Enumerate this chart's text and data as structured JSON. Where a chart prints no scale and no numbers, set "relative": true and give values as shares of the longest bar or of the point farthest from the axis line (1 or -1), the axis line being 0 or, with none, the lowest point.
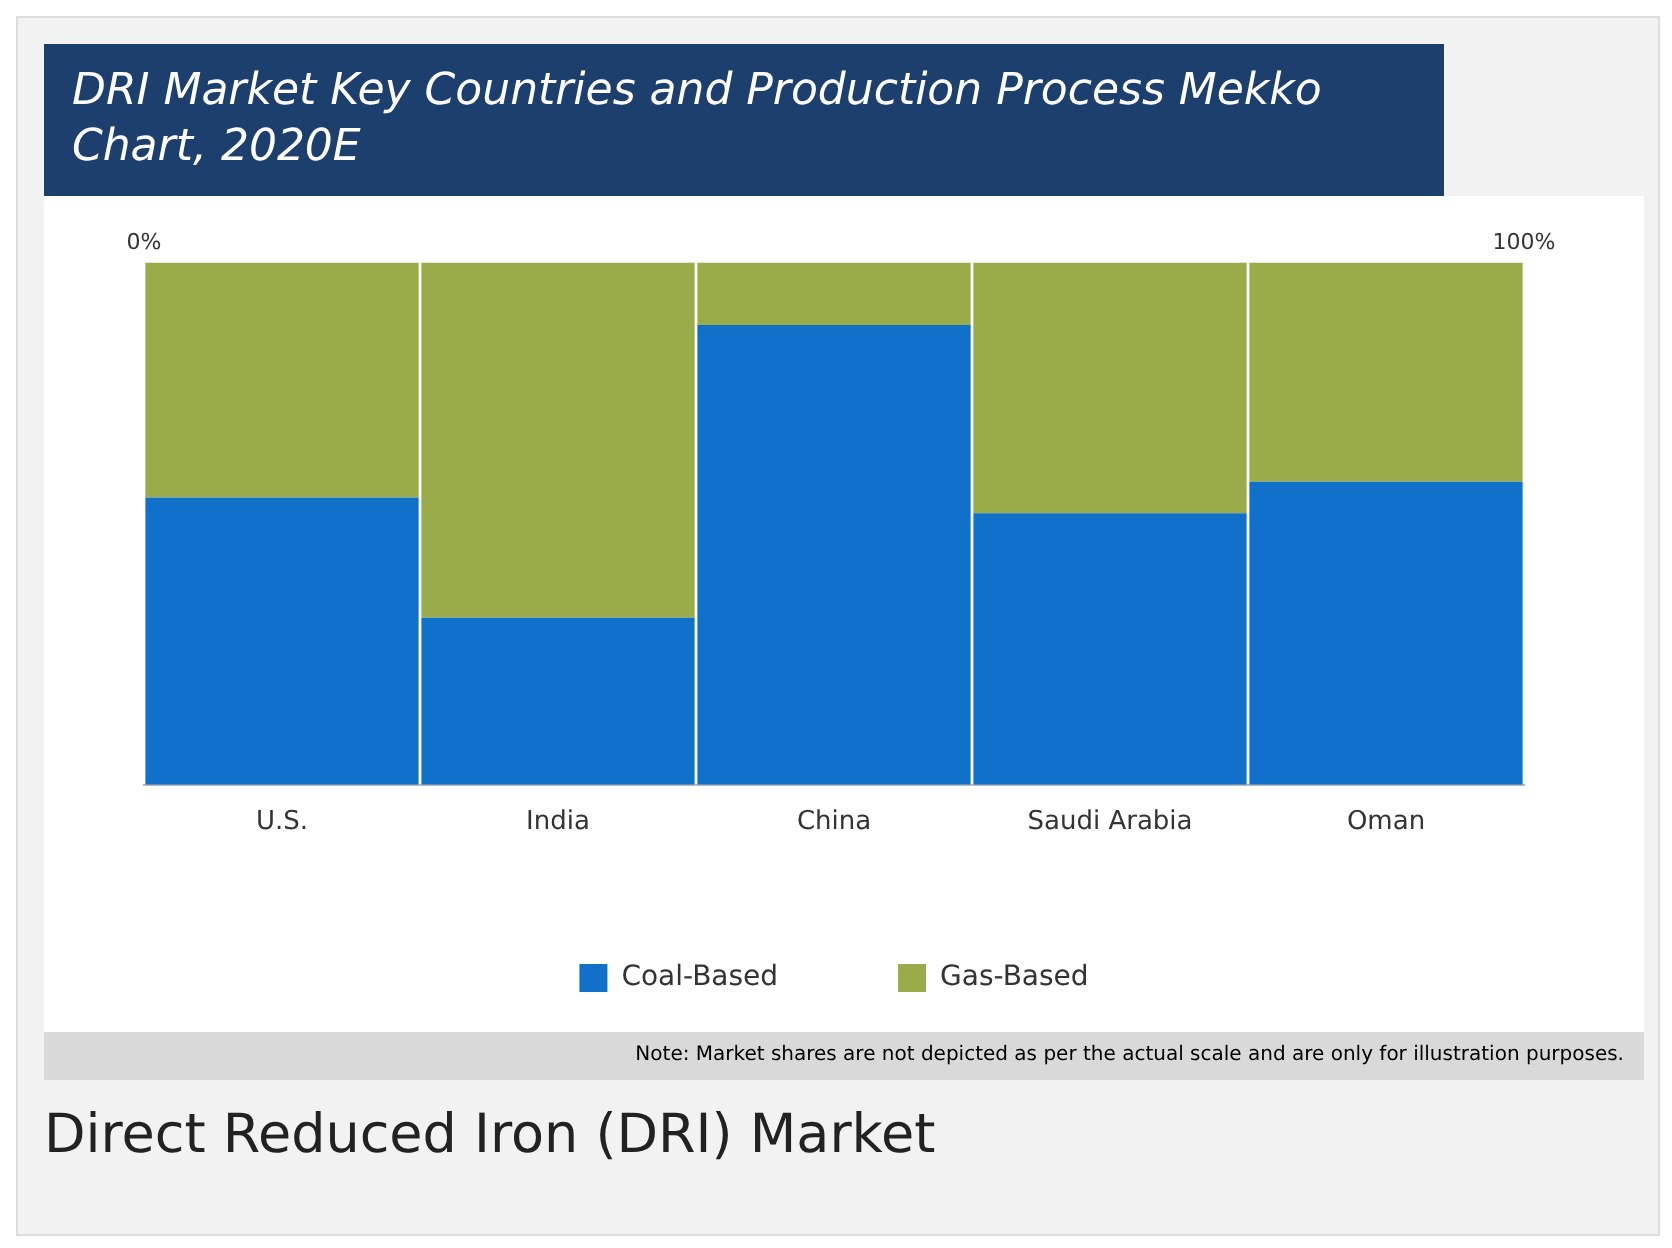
{
  "chart_data": {
    "type": "bar",
    "title": "DRI Market Key Countries and Production Process Mekko Chart, 2020E",
    "categories": [
      "U.S.",
      "India",
      "China",
      "Saudi Arabia",
      "Oman"
    ],
    "stacked": true,
    "relative": true,
    "series": [
      {
        "name": "Coal-Based",
        "color": "#1170c9",
        "values": [
          0.55,
          0.32,
          0.88,
          0.52,
          0.58
        ]
      },
      {
        "name": "Gas-Based",
        "color": "#9aab4a",
        "values": [
          0.45,
          0.68,
          0.12,
          0.48,
          0.42
        ]
      }
    ],
    "x2lim": [
      0,
      100
    ],
    "x2ticks": [
      {
        "value": 0,
        "label": "0%"
      },
      {
        "value": 100,
        "label": "100%"
      }
    ],
    "legend": "bottom",
    "grid": false,
    "annotations": [
      "Note: Market shares are not depicted as per the actual scale and are only for illustration purposes.",
      "Direct Reduced Iron (DRI) Market"
    ]
  }
}
